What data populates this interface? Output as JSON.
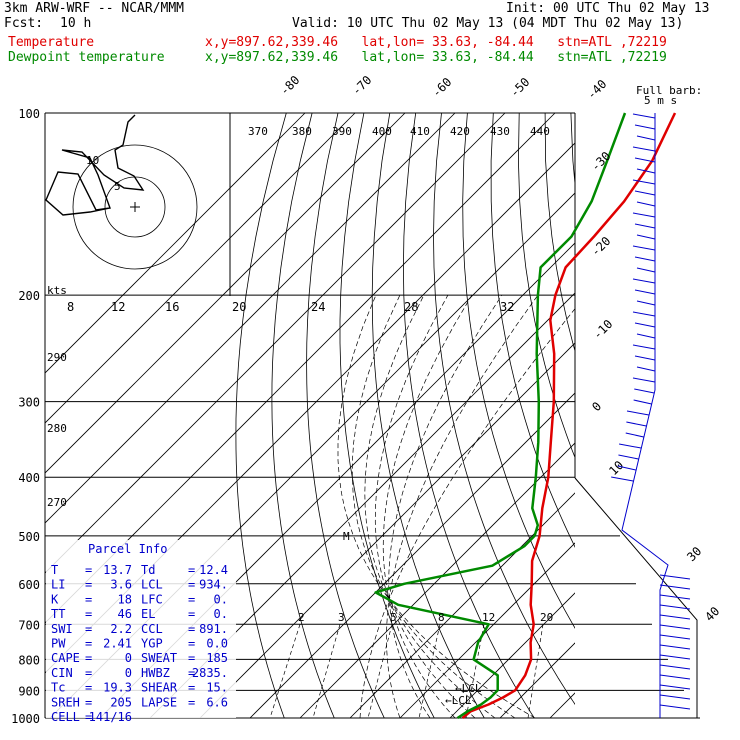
{
  "header": {
    "model": "3km ARW-WRF -- NCAR/MMM",
    "init": "Init: 00 UTC Thu 02 May 13",
    "fcst_label": "Fcst:",
    "fcst_value": "10 h",
    "valid": "Valid: 10 UTC Thu 02 May 13 (04 MDT Thu 02 May 13)",
    "temp_label": "Temperature",
    "temp_info": "x,y=897.62,339.46   lat,lon= 33.63, -84.44   stn=ATL ,72219",
    "dew_label": "Dewpoint temperature",
    "dew_info": "x,y=897.62,339.46   lat,lon= 33.63, -84.44   stn=ATL ,72219"
  },
  "wind_panel": {
    "title": "Full barb:",
    "subtitle": "5 m s",
    "speed_labels": [
      "30",
      "40"
    ]
  },
  "hodograph": {
    "units": "kts",
    "ring_labels": [
      "5",
      "10"
    ]
  },
  "parcel_info": {
    "title": "Parcel Info",
    "rows": [
      {
        "k1": "T",
        "v1": "13.7",
        "k2": "Td",
        "v2": "12.4"
      },
      {
        "k1": "LI",
        "v1": "3.6",
        "k2": "LCL",
        "v2": "934."
      },
      {
        "k1": "K",
        "v1": "18",
        "k2": "LFC",
        "v2": "0."
      },
      {
        "k1": "TT",
        "v1": "46",
        "k2": "EL",
        "v2": "0."
      },
      {
        "k1": "SWI",
        "v1": "2.2",
        "k2": "CCL",
        "v2": "891."
      },
      {
        "k1": "PW",
        "v1": "2.41",
        "k2": "YGP",
        "v2": "0.0"
      },
      {
        "k1": "CAPE",
        "v1": "0",
        "k2": "SWEAT",
        "v2": "185"
      },
      {
        "k1": "CIN",
        "v1": "0",
        "k2": "HWBZ",
        "v2": "2835."
      },
      {
        "k1": "Tc",
        "v1": "19.3",
        "k2": "SHEAR",
        "v2": "15."
      },
      {
        "k1": "SREH",
        "v1": "205",
        "k2": "LAPSE",
        "v2": "6.6"
      },
      {
        "k1": "CELL",
        "v1": "141/16",
        "k2": "",
        "v2": ""
      }
    ]
  },
  "chart_data": {
    "type": "line",
    "subtype": "skew-T log-p sounding",
    "xlabel": "",
    "ylabel": "",
    "pressure_ticks": [
      100,
      200,
      300,
      400,
      500,
      600,
      700,
      800,
      900,
      1000
    ],
    "isotherm_labels": [
      "-80",
      "-70",
      "-60",
      "-50",
      "-40",
      "-30",
      "-20",
      "-10",
      "0",
      "10"
    ],
    "mixing_ratio_labels": [
      "2",
      "3",
      "5",
      "8",
      "12",
      "20"
    ],
    "theta_e_labels": [
      "370",
      "380",
      "390",
      "400",
      "410",
      "420",
      "430",
      "440"
    ],
    "theta_labels": [
      "290",
      "280",
      "270"
    ],
    "hodo_speed_labels": [
      "8",
      "12",
      "16",
      "20",
      "24",
      "28",
      "32"
    ],
    "lcl_labels": [
      "LCL",
      "LCL"
    ],
    "series": [
      {
        "name": "Temperature",
        "color": "#e00000",
        "points": [
          [
            1000,
            12.5
          ],
          [
            975,
            12.8
          ],
          [
            950,
            15.0
          ],
          [
            925,
            16.5
          ],
          [
            900,
            17.5
          ],
          [
            850,
            16.5
          ],
          [
            800,
            14.5
          ],
          [
            750,
            11.0
          ],
          [
            700,
            8.0
          ],
          [
            650,
            3.5
          ],
          [
            600,
            -0.5
          ],
          [
            550,
            -5.0
          ],
          [
            500,
            -8.5
          ],
          [
            450,
            -13.5
          ],
          [
            400,
            -18.5
          ],
          [
            350,
            -25.0
          ],
          [
            300,
            -32.5
          ],
          [
            250,
            -42.0
          ],
          [
            220,
            -49.5
          ],
          [
            200,
            -53.5
          ],
          [
            180,
            -57.0
          ],
          [
            160,
            -57.5
          ],
          [
            140,
            -58.5
          ],
          [
            120,
            -61.0
          ],
          [
            100,
            -66.0
          ]
        ]
      },
      {
        "name": "Dewpoint temperature",
        "color": "#008a00",
        "points": [
          [
            1000,
            11.5
          ],
          [
            975,
            12.2
          ],
          [
            950,
            13.5
          ],
          [
            925,
            14.0
          ],
          [
            900,
            14.0
          ],
          [
            850,
            11.0
          ],
          [
            800,
            3.0
          ],
          [
            750,
            0.5
          ],
          [
            700,
            -1.0
          ],
          [
            650,
            -23.0
          ],
          [
            620,
            -30.0
          ],
          [
            600,
            -26.0
          ],
          [
            560,
            -12.0
          ],
          [
            520,
            -9.5
          ],
          [
            500,
            -9.5
          ],
          [
            480,
            -11.0
          ],
          [
            450,
            -15.5
          ],
          [
            400,
            -21.0
          ],
          [
            350,
            -27.5
          ],
          [
            300,
            -35.5
          ],
          [
            250,
            -45.5
          ],
          [
            200,
            -57.0
          ],
          [
            180,
            -62.0
          ],
          [
            160,
            -62.0
          ],
          [
            140,
            -65.0
          ],
          [
            120,
            -70.0
          ],
          [
            100,
            -76.0
          ]
        ]
      }
    ]
  }
}
